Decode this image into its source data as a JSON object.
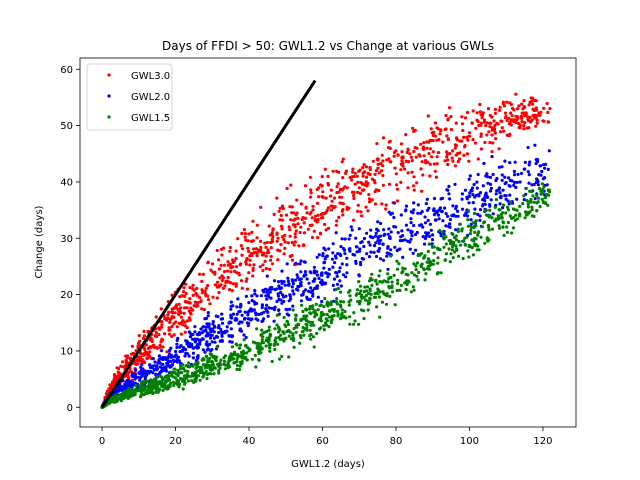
{
  "chart_data": {
    "type": "scatter",
    "title": "Days of FFDI > 50: GWL1.2 vs Change at various GWLs",
    "xlabel": "GWL1.2 (days)",
    "ylabel": "Change (days)",
    "xlim": [
      -6,
      129
    ],
    "ylim": [
      -3.5,
      62
    ],
    "xticks": [
      0,
      20,
      40,
      60,
      80,
      100,
      120
    ],
    "yticks": [
      0,
      10,
      20,
      30,
      40,
      50,
      60
    ],
    "grid": false,
    "legend_position": "top-left",
    "series": [
      {
        "name": "GWL3.0",
        "color": "#ff0000",
        "envelope": {
          "x": [
            0,
            2,
            5,
            10,
            20,
            30,
            40,
            50,
            60,
            70,
            80,
            90,
            100,
            110,
            120
          ],
          "lower": [
            0,
            0.8,
            2,
            4.5,
            10,
            15,
            19,
            23,
            27,
            31,
            34,
            38,
            41,
            45,
            48
          ],
          "upper": [
            0,
            5,
            9,
            14,
            22,
            29,
            35,
            40,
            44,
            48,
            51,
            54,
            56,
            58,
            56
          ]
        }
      },
      {
        "name": "GWL2.0",
        "color": "#0000ff",
        "envelope": {
          "x": [
            0,
            2,
            5,
            10,
            20,
            30,
            40,
            50,
            60,
            70,
            80,
            90,
            100,
            110,
            120
          ],
          "lower": [
            0,
            0.5,
            1,
            2,
            5,
            8,
            11,
            14,
            17,
            20,
            23,
            26,
            29,
            32,
            35
          ],
          "upper": [
            0,
            3,
            5,
            8,
            13,
            18,
            22,
            27,
            31,
            35,
            38,
            42,
            44,
            47,
            48
          ]
        }
      },
      {
        "name": "GWL1.5",
        "color": "#008000",
        "envelope": {
          "x": [
            0,
            2,
            5,
            10,
            20,
            30,
            40,
            50,
            60,
            70,
            80,
            90,
            100,
            110,
            120
          ],
          "lower": [
            0,
            0.2,
            0.5,
            1,
            2,
            4,
            6,
            8,
            11,
            14,
            17,
            21,
            25,
            29,
            34
          ],
          "upper": [
            0,
            2,
            3,
            5,
            8,
            11,
            14,
            18,
            21,
            25,
            28,
            32,
            36,
            38,
            41
          ]
        }
      },
      {
        "color": "#000000",
        "line": {
          "x": [
            0,
            58
          ],
          "y": [
            0,
            58
          ]
        }
      }
    ]
  }
}
